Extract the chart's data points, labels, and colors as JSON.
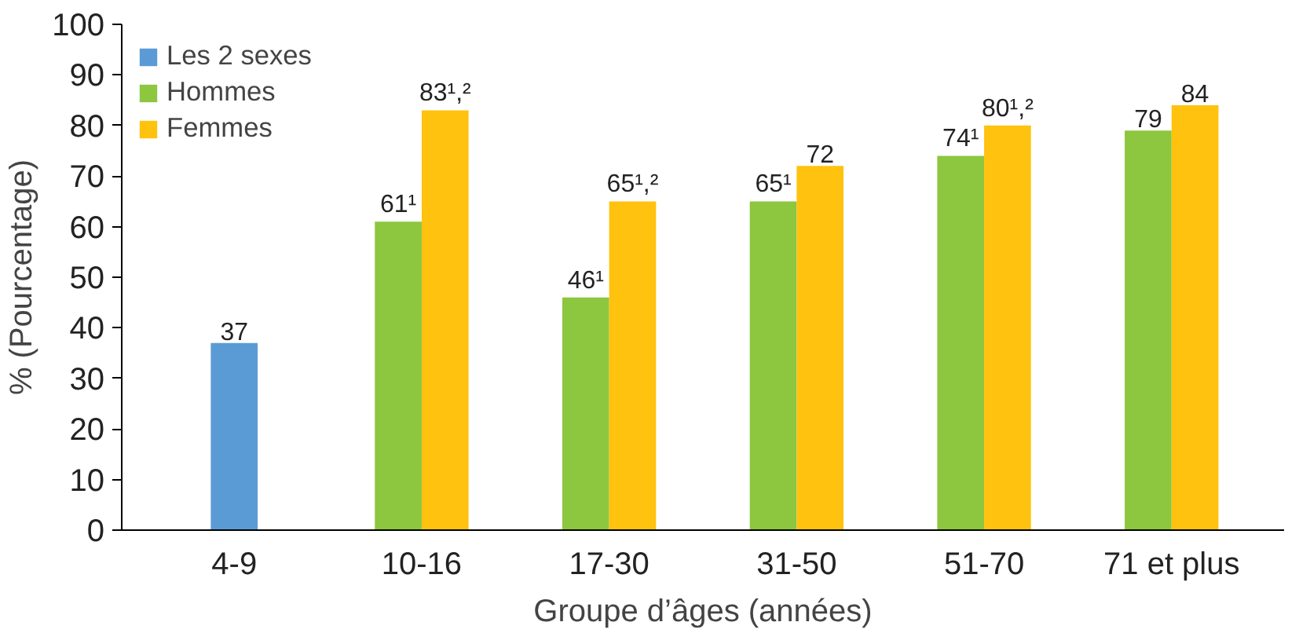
{
  "chart_data": {
    "type": "bar",
    "xlabel": "Groupe d’âges (années)",
    "ylabel": "% (Pourcentage)",
    "categories": [
      "4-9",
      "10-16",
      "17-30",
      "31-50",
      "51-70",
      "71 et plus"
    ],
    "series": [
      {
        "name": "Les 2 sexes",
        "color": "#5b9bd5",
        "values": [
          37,
          null,
          null,
          null,
          null,
          null
        ],
        "value_labels": [
          "37",
          null,
          null,
          null,
          null,
          null
        ]
      },
      {
        "name": "Hommes",
        "color": "#8dc63f",
        "values": [
          null,
          61,
          46,
          65,
          74,
          79
        ],
        "value_labels": [
          null,
          "61¹",
          "46¹",
          "65¹",
          "74¹",
          "79"
        ]
      },
      {
        "name": "Femmes",
        "color": "#ffc20e",
        "values": [
          null,
          83,
          65,
          72,
          80,
          84
        ],
        "value_labels": [
          null,
          "83¹,²",
          "65¹,²",
          "72",
          "80¹,²",
          "84"
        ]
      }
    ],
    "ylim": [
      0,
      100
    ],
    "yticks": [
      0,
      10,
      20,
      30,
      40,
      50,
      60,
      70,
      80,
      90,
      100
    ],
    "grid": false,
    "legend": "top left"
  }
}
